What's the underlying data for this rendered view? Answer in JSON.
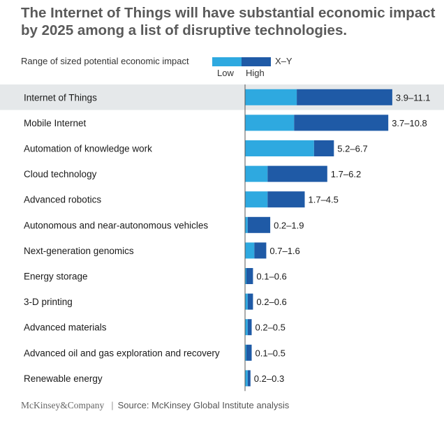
{
  "title": "The Internet of Things will have substantial economic impact by 2025 among a list of disruptive technologies.",
  "legend": {
    "label": "Range of sized potential economic impact",
    "low": "Low",
    "high": "High",
    "range_format": "X–Y"
  },
  "colors": {
    "low": "#2ea9e0",
    "high": "#1f5aa6",
    "highlight_row": "#e5e8ea",
    "axis": "#555555"
  },
  "chart_data": {
    "type": "bar",
    "subtype": "stacked-horizontal-range",
    "categories": [
      "Internet of Things",
      "Mobile Internet",
      "Automation of knowledge work",
      "Cloud technology",
      "Advanced robotics",
      "Autonomous and near-autonomous vehicles",
      "Next-generation genomics",
      "Energy storage",
      "3-D printing",
      "Advanced materials",
      "Advanced oil and gas exploration and recovery",
      "Renewable energy"
    ],
    "series": [
      {
        "name": "Low",
        "values": [
          3.9,
          3.7,
          5.2,
          1.7,
          1.7,
          0.2,
          0.7,
          0.1,
          0.2,
          0.2,
          0.1,
          0.2
        ]
      },
      {
        "name": "High",
        "values": [
          11.1,
          10.8,
          6.7,
          6.2,
          4.5,
          1.9,
          1.6,
          0.6,
          0.6,
          0.5,
          0.5,
          0.3
        ]
      }
    ],
    "labels": [
      "3.9–11.1",
      "3.7–10.8",
      "5.2–6.7",
      "1.7–6.2",
      "1.7–4.5",
      "0.2–1.9",
      "0.7–1.6",
      "0.1–0.6",
      "0.2–0.6",
      "0.2–0.5",
      "0.1–0.5",
      "0.2–0.3"
    ],
    "highlighted_category": "Internet of Things",
    "xlim": [
      0,
      11.1
    ],
    "grid": false,
    "legend_position": "top"
  },
  "footer": {
    "brand": "McKinsey&Company",
    "source": "Source: McKinsey Global Institute analysis"
  }
}
